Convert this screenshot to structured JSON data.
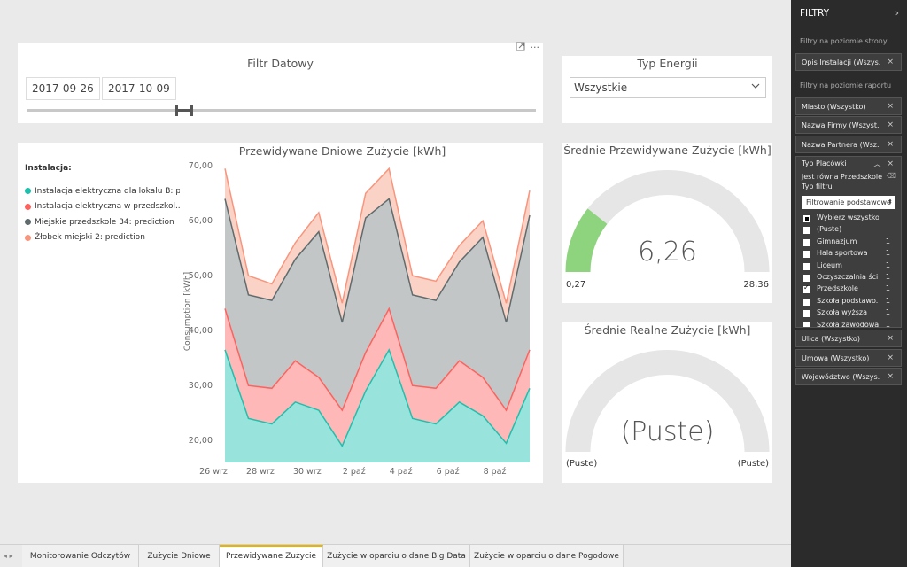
{
  "date_filter": {
    "title": "Filtr Datowy",
    "start": "2017-09-26",
    "end": "2017-10-09",
    "slider_position": 0.32,
    "expand_icon": "focus-mode-icon",
    "more_icon": "more-options-icon"
  },
  "energy_filter": {
    "title": "Typ Energii",
    "value": "Wszystkie"
  },
  "chart": {
    "title": "Przewidywane Dniowe Zużycie [kWh]",
    "legend_title": "Instalacja:",
    "legend": [
      {
        "label": "Instalacja elektryczna dla lokalu B: p...",
        "color": "#1fbfae"
      },
      {
        "label": "Instalacja elektryczna w przedszkol...",
        "color": "#fd625e"
      },
      {
        "label": "Miejskie przedszkole 34: prediction",
        "color": "#5f6b6d"
      },
      {
        "label": "Żłobek miejski 2: prediction",
        "color": "#f8957d"
      }
    ]
  },
  "chart_data": {
    "type": "area",
    "title": "Przewidywane Dniowe Zużycie [kWh]",
    "xlabel": "",
    "ylabel": "Consumption [kWh]",
    "ylim": [
      16,
      71
    ],
    "yticks": [
      "70,00",
      "60,00",
      "50,00",
      "40,00",
      "30,00",
      "20,00"
    ],
    "ytick_values": [
      70,
      60,
      50,
      40,
      30,
      20
    ],
    "x": [
      "26 wrz",
      "27 wrz",
      "28 wrz",
      "29 wrz",
      "30 wrz",
      "1 paź",
      "2 paź",
      "3 paź",
      "4 paź",
      "5 paź",
      "6 paź",
      "7 paź",
      "8 paź",
      "9 paź"
    ],
    "xtick_labels": [
      "26 wrz",
      "28 wrz",
      "30 wrz",
      "2 paź",
      "4 paź",
      "6 paź",
      "8 paź"
    ],
    "xtick_index": [
      0,
      2,
      4,
      6,
      8,
      10,
      12
    ],
    "series": [
      {
        "name": "Instalacja elektryczna dla lokalu B: p...",
        "color": "#1fbfae",
        "fill": "#98e3dc",
        "values": [
          36.5,
          24,
          23,
          27,
          25.5,
          19,
          29,
          36.5,
          24,
          23,
          27,
          24.5,
          19.5,
          29.5
        ]
      },
      {
        "name": "Instalacja elektryczna w przedszkol...",
        "color": "#fd625e",
        "fill": "#fdb8b7",
        "values": [
          44,
          30,
          29.5,
          34.5,
          31.5,
          25.5,
          36,
          44,
          30,
          29.5,
          34.5,
          31.5,
          25.5,
          36.5
        ]
      },
      {
        "name": "Miejskie przedszkole 34: prediction",
        "color": "#5f6b6d",
        "fill": "#c3c6c6",
        "values": [
          64,
          46.5,
          45.5,
          53,
          58,
          41.5,
          60.5,
          64,
          46.5,
          45.5,
          52.5,
          57,
          41.5,
          61
        ]
      },
      {
        "name": "Żłobek miejski 2: prediction",
        "color": "#f8957d",
        "fill": "#fbd2c6",
        "values": [
          69.5,
          50,
          48.5,
          56,
          61.5,
          45,
          65,
          69.5,
          50,
          49,
          55.5,
          60,
          45,
          65.5
        ]
      }
    ]
  },
  "gauge_predicted": {
    "title": "Średnie Przewidywane Zużycie [kWh]",
    "value": "6,26",
    "min": "0,27",
    "max": "28,36",
    "fraction": 0.214,
    "fill_color": "#8ed47e",
    "track_color": "#e6e6e6"
  },
  "gauge_real": {
    "title": "Średnie Realne Zużycie [kWh]",
    "value": "(Puste)",
    "min": "(Puste)",
    "max": "(Puste)",
    "fraction": 0,
    "track_color": "#e6e6e6"
  },
  "filters_pane": {
    "title": "FILTRY",
    "collapse_icon": "chevron-right-icon",
    "page_section": "Filtry na poziomie strony",
    "page_filters": [
      "Opis Instalacji  (Wszys..."
    ],
    "report_section": "Filtry na poziomie raportu",
    "report_filters_top": [
      "Miasto  (Wszystko)",
      "Nazwa Firmy  (Wszyst...",
      "Nazwa Partnera  (Wsz..."
    ],
    "type_filter": {
      "title": "Typ Placówki",
      "condition": "jest równa Przedszkole",
      "filter_type_label": "Typ filtru",
      "filter_type_value": "Filtrowanie podstawowe",
      "options": [
        {
          "label": "Wybierz wszystko",
          "count": "",
          "state": "partial"
        },
        {
          "label": "(Puste)",
          "count": "",
          "state": "off"
        },
        {
          "label": "Gimnazjum",
          "count": "1",
          "state": "off"
        },
        {
          "label": "Hala sportowa",
          "count": "1",
          "state": "off"
        },
        {
          "label": "Liceum",
          "count": "1",
          "state": "off"
        },
        {
          "label": "Oczyszczalnia ści...",
          "count": "1",
          "state": "off"
        },
        {
          "label": "Przedszkole",
          "count": "1",
          "state": "on"
        },
        {
          "label": "Szkoła podstawo...",
          "count": "1",
          "state": "off"
        },
        {
          "label": "Szkoła wyższa",
          "count": "1",
          "state": "off"
        },
        {
          "label": "Szkoła zawodowa",
          "count": "1",
          "state": "off"
        }
      ]
    },
    "report_filters_bottom": [
      "Ulica  (Wszystko)",
      "Umowa  (Wszystko)",
      "Województwo  (Wszys..."
    ]
  },
  "tabs": {
    "nav": "◂ ▸",
    "items": [
      "Monitorowanie Odczytów",
      "Zużycie Dniowe",
      "Przewidywane Zużycie",
      "Zużycie w oparciu o dane Big Data",
      "Zużycie w oparciu o dane Pogodowe"
    ],
    "active_index": 2
  }
}
